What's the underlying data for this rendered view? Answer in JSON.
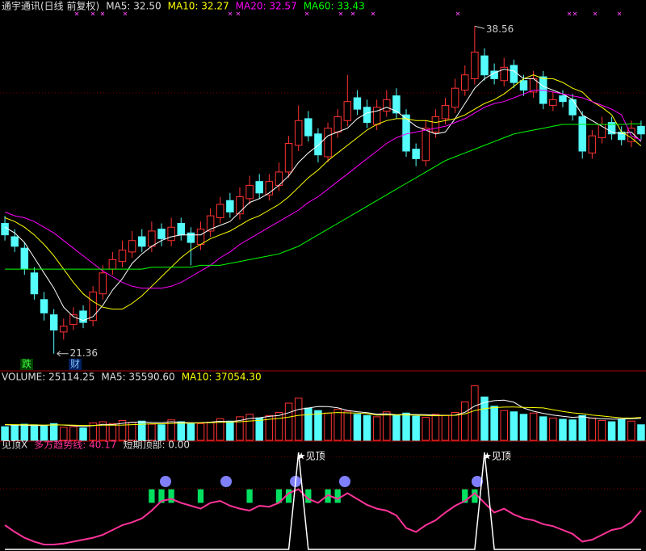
{
  "chart_data": [
    {
      "type": "candlestick",
      "title": "通宇通讯(日线 前复权)",
      "up_color": "#ff3232",
      "down_color": "#54fcfc",
      "ylim": [
        20.5,
        39.0
      ],
      "open": [
        28.2,
        27.5,
        26.9,
        25.6,
        24.2,
        23.4,
        22.5,
        22.9,
        23.6,
        23.1,
        24.5,
        25.8,
        26.2,
        26.7,
        27.5,
        27.0,
        27.9,
        27.3,
        28.2,
        27.7,
        27.1,
        27.8,
        28.5,
        29.4,
        28.7,
        29.5,
        30.4,
        29.7,
        30.2,
        30.9,
        32.3,
        33.7,
        32.9,
        31.7,
        33.0,
        33.6,
        34.8,
        34.3,
        33.4,
        34.1,
        34.9,
        33.9,
        32.1,
        31.5,
        33.0,
        33.7,
        34.3,
        35.2,
        35.8,
        37.0,
        36.2,
        35.7,
        36.5,
        35.7,
        35.1,
        35.9,
        34.4,
        34.9,
        34.7,
        33.8,
        31.9,
        32.7,
        33.5,
        33.0,
        32.5,
        33.3
      ],
      "high": [
        28.6,
        27.9,
        27.2,
        25.9,
        24.6,
        23.7,
        23.2,
        23.8,
        23.9,
        24.9,
        26.0,
        26.7,
        27.3,
        27.8,
        27.9,
        28.3,
        28.2,
        28.5,
        28.5,
        28.0,
        28.3,
        29.0,
        29.6,
        29.8,
        30.1,
        30.7,
        30.8,
        30.8,
        31.4,
        32.8,
        34.4,
        34.1,
        33.2,
        33.5,
        34.2,
        36.0,
        35.2,
        34.7,
        34.7,
        35.2,
        35.3,
        34.2,
        32.4,
        33.6,
        34.2,
        34.8,
        35.8,
        36.5,
        38.56,
        37.4,
        36.6,
        36.9,
        36.8,
        36.0,
        36.2,
        36.2,
        35.1,
        35.2,
        35.0,
        34.1,
        33.1,
        33.8,
        33.8,
        33.3,
        33.6,
        33.6
      ],
      "low": [
        27.3,
        26.7,
        25.5,
        24.2,
        23.1,
        21.36,
        22.1,
        22.6,
        22.7,
        22.8,
        24.2,
        25.5,
        25.9,
        26.4,
        26.7,
        26.7,
        27.0,
        27.0,
        27.3,
        26.0,
        26.8,
        27.5,
        28.2,
        28.5,
        28.4,
        29.2,
        29.5,
        29.4,
        29.9,
        30.6,
        32.0,
        32.5,
        31.4,
        31.4,
        32.7,
        33.3,
        33.9,
        33.2,
        33.1,
        33.8,
        33.7,
        31.7,
        31.2,
        31.2,
        32.7,
        33.4,
        34.0,
        34.9,
        35.5,
        35.7,
        35.5,
        35.4,
        35.3,
        34.9,
        34.8,
        34.2,
        34.1,
        34.3,
        33.6,
        31.6,
        31.6,
        32.4,
        32.6,
        32.3,
        32.2,
        32.6
      ],
      "close": [
        27.6,
        27.0,
        25.8,
        24.5,
        23.5,
        22.6,
        22.8,
        23.4,
        23.0,
        24.6,
        25.6,
        26.3,
        26.8,
        27.3,
        27.0,
        27.8,
        27.4,
        28.0,
        27.6,
        27.2,
        27.9,
        28.6,
        29.2,
        28.8,
        29.6,
        30.2,
        29.8,
        30.4,
        30.9,
        32.4,
        33.6,
        32.8,
        31.8,
        33.2,
        33.8,
        34.6,
        34.2,
        33.5,
        34.3,
        34.7,
        34.0,
        32.0,
        31.6,
        33.2,
        33.8,
        34.4,
        35.3,
        36.0,
        37.2,
        36.0,
        35.8,
        36.4,
        35.6,
        35.2,
        35.8,
        34.5,
        34.7,
        34.6,
        33.9,
        32.0,
        32.8,
        33.4,
        32.9,
        32.6,
        33.2,
        32.9
      ],
      "series": [
        {
          "name": "MA5: 32.50",
          "color": "#ffffff",
          "values": [
            28.0,
            27.7,
            27.2,
            26.4,
            25.6,
            24.8,
            23.8,
            23.3,
            23.1,
            23.3,
            23.9,
            24.7,
            25.3,
            26.1,
            26.6,
            27.0,
            27.3,
            27.5,
            27.6,
            27.6,
            27.6,
            27.9,
            28.1,
            28.3,
            28.8,
            29.3,
            29.5,
            29.8,
            30.2,
            30.7,
            31.4,
            31.9,
            32.3,
            32.8,
            33.0,
            33.2,
            33.7,
            34.0,
            34.1,
            34.3,
            34.1,
            33.7,
            33.3,
            33.1,
            32.9,
            33.0,
            33.7,
            34.5,
            35.3,
            35.8,
            36.1,
            36.3,
            36.2,
            35.8,
            35.8,
            35.4,
            35.2,
            35.0,
            34.7,
            33.9,
            33.6,
            33.3,
            33.0,
            32.9,
            33.0,
            32.5
          ]
        },
        {
          "name": "MA10: 32.27",
          "color": "#ffff00",
          "values": [
            28.5,
            28.3,
            28.0,
            27.6,
            27.1,
            26.5,
            25.8,
            25.1,
            24.5,
            24.1,
            23.8,
            23.7,
            23.7,
            24.0,
            24.4,
            24.9,
            25.4,
            25.9,
            26.4,
            26.8,
            27.1,
            27.4,
            27.6,
            27.8,
            28.1,
            28.4,
            28.6,
            28.9,
            29.2,
            29.6,
            30.1,
            30.6,
            31.0,
            31.5,
            31.9,
            32.3,
            32.7,
            33.1,
            33.4,
            33.6,
            33.7,
            33.7,
            33.6,
            33.6,
            33.5,
            33.6,
            33.7,
            33.9,
            34.2,
            34.5,
            34.7,
            35.0,
            35.4,
            35.8,
            36.0,
            35.8,
            35.8,
            35.6,
            35.3,
            35.1,
            34.6,
            34.3,
            33.9,
            33.0,
            32.7,
            32.27
          ]
        },
        {
          "name": "MA20: 32.57",
          "color": "#ff00ff",
          "values": [
            28.8,
            28.6,
            28.5,
            28.3,
            28.0,
            27.7,
            27.3,
            26.9,
            26.5,
            26.1,
            25.7,
            25.4,
            25.1,
            24.9,
            24.8,
            24.8,
            24.8,
            24.9,
            25.1,
            25.4,
            25.7,
            26.0,
            26.4,
            26.7,
            27.1,
            27.4,
            27.7,
            28.0,
            28.3,
            28.6,
            28.9,
            29.3,
            29.6,
            30.0,
            30.4,
            30.8,
            31.2,
            31.6,
            32.0,
            32.4,
            32.7,
            32.9,
            33.0,
            33.1,
            33.2,
            33.3,
            33.5,
            33.7,
            34.0,
            34.3,
            34.5,
            34.6,
            34.8,
            35.0,
            35.2,
            35.2,
            35.1,
            35.0,
            34.9,
            34.8,
            34.6,
            34.4,
            34.2,
            33.9,
            32.8,
            32.57
          ]
        },
        {
          "name": "MA60: 33.43",
          "color": "#00ff00",
          "values": [
            25.8,
            25.8,
            25.8,
            25.8,
            25.8,
            25.8,
            25.8,
            25.8,
            25.8,
            25.8,
            25.8,
            25.8,
            25.8,
            25.8,
            25.8,
            25.9,
            25.9,
            25.9,
            25.9,
            25.9,
            26.0,
            26.0,
            26.0,
            26.1,
            26.2,
            26.3,
            26.4,
            26.5,
            26.6,
            26.8,
            27.0,
            27.3,
            27.6,
            27.9,
            28.2,
            28.5,
            28.8,
            29.1,
            29.4,
            29.7,
            30.0,
            30.3,
            30.6,
            30.9,
            31.2,
            31.5,
            31.7,
            31.9,
            32.1,
            32.3,
            32.5,
            32.7,
            32.9,
            33.0,
            33.1,
            33.2,
            33.3,
            33.4,
            33.4,
            33.4,
            33.4,
            33.4,
            33.4,
            33.4,
            33.43,
            33.43
          ]
        }
      ],
      "max_label": 38.56,
      "min_label": 21.36,
      "badges": [
        "跌",
        "财"
      ]
    },
    {
      "type": "bar",
      "title": "VOLUME: 25114.25",
      "ylim": [
        0,
        90000
      ],
      "values": [
        22000,
        24000,
        26000,
        25000,
        23000,
        27000,
        21000,
        22000,
        20000,
        28000,
        30000,
        27000,
        32000,
        29000,
        31000,
        26000,
        25000,
        33000,
        30000,
        28000,
        27000,
        29000,
        35000,
        31000,
        38000,
        42000,
        36000,
        40000,
        45000,
        60000,
        68000,
        52000,
        48000,
        44000,
        50000,
        47000,
        42000,
        40000,
        38000,
        46000,
        41000,
        44000,
        39000,
        37000,
        42000,
        40000,
        45000,
        62000,
        88000,
        70000,
        55000,
        48000,
        46000,
        42000,
        44000,
        38000,
        36000,
        34000,
        33000,
        40000,
        36000,
        32000,
        30000,
        34000,
        31000,
        25114.25
      ],
      "series": [
        {
          "name": "MA5: 35590.60",
          "color": "#ffffff",
          "values": [
            25000,
            24500,
            24500,
            24000,
            24000,
            25000,
            24600,
            23600,
            22600,
            23600,
            25800,
            25400,
            27400,
            29200,
            29800,
            29000,
            28600,
            30000,
            29000,
            28400,
            28600,
            29400,
            30800,
            30000,
            32000,
            35200,
            36400,
            38600,
            40200,
            44600,
            50000,
            52200,
            54600,
            54400,
            52400,
            48200,
            46200,
            44600,
            42200,
            42600,
            41400,
            41800,
            41600,
            41400,
            40600,
            40400,
            40600,
            45200,
            55400,
            61000,
            64000,
            65000,
            61400,
            52200,
            47000,
            43600,
            40800,
            38800,
            37000,
            38200,
            35800,
            35000,
            34200,
            34400,
            35000,
            35590.6
          ]
        },
        {
          "name": "MA10: 37054.30",
          "color": "#ffff00",
          "values": [
            25500,
            25300,
            25100,
            24900,
            24700,
            24900,
            24800,
            24400,
            24000,
            24000,
            24400,
            24500,
            24600,
            25300,
            25900,
            26700,
            26600,
            27300,
            27700,
            27800,
            28200,
            28600,
            29200,
            29500,
            30000,
            31200,
            32100,
            33900,
            35400,
            37500,
            40300,
            41300,
            42700,
            44100,
            44900,
            44400,
            44100,
            43000,
            40800,
            41000,
            41000,
            41100,
            40600,
            40100,
            39600,
            40000,
            40300,
            42800,
            48000,
            51200,
            52800,
            53600,
            53800,
            53200,
            52800,
            52300,
            49400,
            46700,
            44400,
            43000,
            40700,
            39300,
            37700,
            36300,
            35900,
            37054.3
          ]
        }
      ]
    },
    {
      "type": "line",
      "title": "见顶X",
      "ylim": [
        0,
        100
      ],
      "annotation": "★见顶",
      "series": [
        {
          "name": "多方趋势线: 40.17",
          "color": "#ff3399",
          "values": [
            25,
            18,
            12,
            8,
            5,
            5,
            6,
            8,
            10,
            12,
            15,
            20,
            25,
            28,
            32,
            40,
            50,
            52,
            48,
            45,
            42,
            48,
            50,
            45,
            42,
            40,
            45,
            44,
            48,
            58,
            62,
            52,
            48,
            56,
            52,
            58,
            52,
            46,
            42,
            40,
            35,
            22,
            18,
            25,
            30,
            38,
            45,
            50,
            58,
            48,
            38,
            42,
            36,
            32,
            30,
            26,
            24,
            20,
            16,
            8,
            10,
            15,
            20,
            22,
            28,
            40.17
          ]
        },
        {
          "name": "短期顶部: 0.00",
          "color": "#ffffff",
          "values": [
            0,
            0,
            0,
            0,
            0,
            0,
            0,
            0,
            0,
            0,
            0,
            0,
            0,
            0,
            0,
            0,
            0,
            0,
            0,
            0,
            0,
            0,
            0,
            0,
            0,
            0,
            0,
            0,
            0,
            0,
            100,
            0,
            0,
            0,
            0,
            0,
            0,
            0,
            0,
            0,
            0,
            0,
            0,
            0,
            0,
            0,
            0,
            0,
            0,
            100,
            0,
            0,
            0,
            0,
            0,
            0,
            0,
            0,
            0,
            0,
            0,
            0,
            0,
            0,
            0,
            0
          ]
        }
      ],
      "signals": {
        "color": "#00e060",
        "values": [
          null,
          null,
          null,
          null,
          null,
          null,
          null,
          null,
          null,
          null,
          null,
          null,
          null,
          null,
          null,
          62,
          62,
          62,
          null,
          null,
          62,
          null,
          null,
          null,
          null,
          62,
          null,
          null,
          62,
          62,
          null,
          62,
          null,
          62,
          62,
          null,
          null,
          null,
          null,
          null,
          null,
          null,
          null,
          null,
          null,
          null,
          null,
          62,
          62,
          null,
          null,
          null,
          null,
          null,
          null,
          null,
          null,
          null,
          null,
          null,
          null,
          null,
          null,
          null,
          null,
          null
        ]
      }
    }
  ]
}
